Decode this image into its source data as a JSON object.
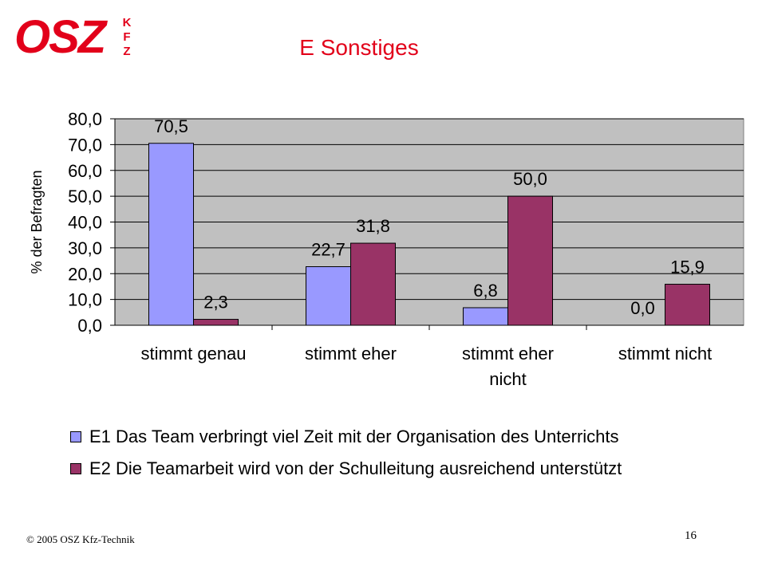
{
  "logo": {
    "main": "OSZ",
    "sub": [
      "K",
      "F",
      "Z"
    ]
  },
  "title": "E Sonstiges",
  "chart_data": {
    "type": "bar",
    "categories": [
      [
        "stimmt genau"
      ],
      [
        "stimmt eher"
      ],
      [
        "stimmt eher",
        "nicht"
      ],
      [
        "stimmt nicht"
      ]
    ],
    "series": [
      {
        "name": "E1 Das Team verbringt viel Zeit mit der Organisation des Unterrichts",
        "values": [
          70.5,
          22.7,
          6.8,
          0.0
        ],
        "labels": [
          "70,5",
          "22,7",
          "6,8",
          "0,0"
        ],
        "color": "#9999ff"
      },
      {
        "name": "E2 Die Teamarbeit wird von der Schulleitung ausreichend unterstützt",
        "values": [
          2.3,
          31.8,
          50.0,
          15.9
        ],
        "labels": [
          "2,3",
          "31,8",
          "50,0",
          "15,9"
        ],
        "color": "#993366"
      }
    ],
    "ylabel": "% der Befragten",
    "ylim": [
      0,
      80
    ],
    "yticks": [
      0,
      10,
      20,
      30,
      40,
      50,
      60,
      70,
      80
    ],
    "ytick_labels": [
      "0,0",
      "10,0",
      "20,0",
      "30,0",
      "40,0",
      "50,0",
      "60,0",
      "70,0",
      "80,0"
    ],
    "grid": true,
    "plot_background": "#c0c0c0",
    "legend_position": "bottom"
  },
  "footer": {
    "copyright": "© 2005 OSZ Kfz-Technik",
    "page": "16"
  }
}
